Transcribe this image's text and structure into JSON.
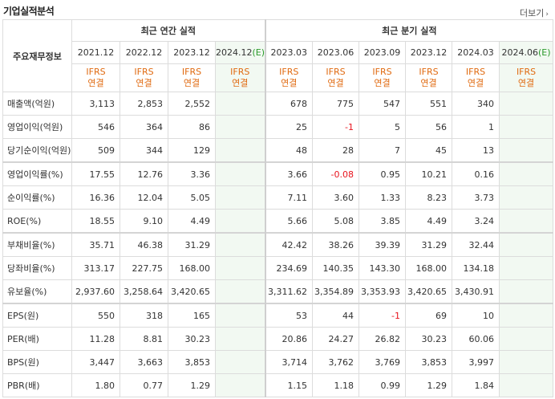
{
  "header": {
    "title": "기업실적분석",
    "more": "더보기"
  },
  "table": {
    "corner_label": "주요재무정보",
    "annual_group": "최근 연간 실적",
    "quarter_group": "최근 분기 실적",
    "annual_dates": [
      "2021.12",
      "2022.12",
      "2023.12",
      "2024.12"
    ],
    "annual_est": "(E)",
    "quarter_dates": [
      "2023.03",
      "2023.06",
      "2023.09",
      "2023.12",
      "2024.03",
      "2024.06"
    ],
    "quarter_est": "(E)",
    "ifrs_top": "IFRS",
    "ifrs_bottom": "연결",
    "rows": [
      {
        "label": "매출액(억원)",
        "values": [
          "3,113",
          "2,853",
          "2,552",
          "",
          "678",
          "775",
          "547",
          "551",
          "340",
          ""
        ]
      },
      {
        "label": "영업이익(억원)",
        "values": [
          "546",
          "364",
          "86",
          "",
          "25",
          "-1",
          "5",
          "56",
          "1",
          ""
        ]
      },
      {
        "label": "당기순이익(억원)",
        "values": [
          "509",
          "344",
          "129",
          "",
          "48",
          "28",
          "7",
          "45",
          "13",
          ""
        ]
      },
      {
        "label": "영업이익률(%)",
        "values": [
          "17.55",
          "12.76",
          "3.36",
          "",
          "3.66",
          "-0.08",
          "0.95",
          "10.21",
          "0.16",
          ""
        ]
      },
      {
        "label": "순이익률(%)",
        "values": [
          "16.36",
          "12.04",
          "5.05",
          "",
          "7.11",
          "3.60",
          "1.33",
          "8.23",
          "3.73",
          ""
        ]
      },
      {
        "label": "ROE(%)",
        "values": [
          "18.55",
          "9.10",
          "4.49",
          "",
          "5.66",
          "5.08",
          "3.85",
          "4.49",
          "3.24",
          ""
        ]
      },
      {
        "label": "부채비율(%)",
        "values": [
          "35.71",
          "46.38",
          "31.29",
          "",
          "42.42",
          "38.26",
          "39.39",
          "31.29",
          "32.44",
          ""
        ]
      },
      {
        "label": "당좌비율(%)",
        "values": [
          "313.17",
          "227.75",
          "168.00",
          "",
          "234.69",
          "140.35",
          "143.30",
          "168.00",
          "134.18",
          ""
        ]
      },
      {
        "label": "유보율(%)",
        "values": [
          "2,937.60",
          "3,258.64",
          "3,420.65",
          "",
          "3,311.62",
          "3,354.89",
          "3,353.93",
          "3,420.65",
          "3,430.91",
          ""
        ]
      },
      {
        "label": "EPS(원)",
        "values": [
          "550",
          "318",
          "165",
          "",
          "53",
          "44",
          "-1",
          "69",
          "10",
          ""
        ]
      },
      {
        "label": "PER(배)",
        "values": [
          "11.28",
          "8.81",
          "30.23",
          "",
          "20.86",
          "24.27",
          "26.82",
          "30.23",
          "60.06",
          ""
        ]
      },
      {
        "label": "BPS(원)",
        "values": [
          "3,447",
          "3,663",
          "3,853",
          "",
          "3,714",
          "3,762",
          "3,769",
          "3,853",
          "3,997",
          ""
        ]
      },
      {
        "label": "PBR(배)",
        "values": [
          "1.80",
          "0.77",
          "1.29",
          "",
          "1.15",
          "1.18",
          "0.99",
          "1.29",
          "1.84",
          ""
        ]
      }
    ]
  }
}
